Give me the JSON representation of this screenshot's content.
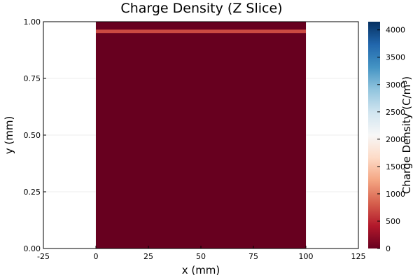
{
  "chart_data": {
    "type": "heatmap",
    "title": "Charge Density (Z Slice)",
    "xlabel": "x (mm)",
    "ylabel": "y (mm)",
    "colorbar_label": "Charge Density (C/m³)",
    "xlim": [
      -25,
      125
    ],
    "ylim": [
      0,
      1
    ],
    "x_ticks": [
      -25,
      0,
      25,
      50,
      75,
      100,
      125
    ],
    "x_tick_labels": [
      "-25",
      "0",
      "25",
      "50",
      "75",
      "100",
      "125"
    ],
    "y_ticks": [
      0,
      0.25,
      0.5,
      0.75,
      1.0
    ],
    "y_tick_labels": [
      "0.00",
      "0.25",
      "0.50",
      "0.75",
      "1.00"
    ],
    "colorbar_ticks": [
      0,
      500,
      1000,
      1500,
      2000,
      2500,
      3000,
      3500,
      4000
    ],
    "colorbar_tick_labels": [
      "0",
      "500",
      "1000",
      "1500",
      "2000",
      "2500",
      "3000",
      "3500",
      "4000"
    ],
    "clim": [
      0,
      4150
    ],
    "colormap": "RdBu",
    "grid": true,
    "regions": [
      {
        "x": [
          0,
          100
        ],
        "y": [
          0,
          1.0
        ],
        "value": 0
      },
      {
        "x": [
          0,
          100
        ],
        "y": [
          0.95,
          0.965
        ],
        "value": 700
      }
    ]
  }
}
